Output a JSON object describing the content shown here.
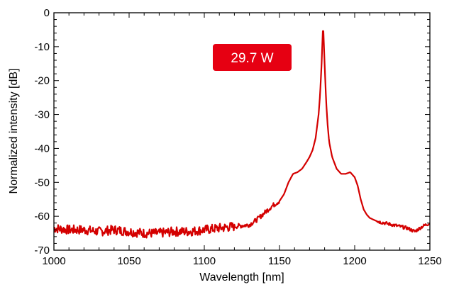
{
  "chart_data": {
    "type": "line",
    "xlabel": "Wavelength [nm]",
    "ylabel": "Normalized intensity [dB]",
    "xlim": [
      1000,
      1250
    ],
    "ylim": [
      -70,
      0
    ],
    "xticks": [
      "1000",
      "1050",
      "1100",
      "1150",
      "1200",
      "1250"
    ],
    "yticks": [
      "0",
      "-10",
      "-20",
      "-30",
      "-40",
      "-50",
      "-60",
      "-70"
    ],
    "grid": false,
    "annotation": {
      "text": "29.7 W",
      "background": "#e60012",
      "color": "#ffffff"
    },
    "series": [
      {
        "color": "#d40000",
        "x": [
          1000,
          1010,
          1020,
          1030,
          1040,
          1050,
          1060,
          1070,
          1080,
          1090,
          1100,
          1110,
          1120,
          1130,
          1135,
          1140,
          1145,
          1150,
          1153,
          1156,
          1159,
          1162,
          1165,
          1168,
          1170,
          1172,
          1174,
          1176,
          1177,
          1178,
          1179,
          1180,
          1181,
          1182,
          1183,
          1185,
          1188,
          1191,
          1194,
          1197,
          1200,
          1202,
          1204,
          1206,
          1208,
          1210,
          1215,
          1220,
          1225,
          1230,
          1235,
          1240,
          1245,
          1250
        ],
        "values": [
          -63.5,
          -64.0,
          -64.0,
          -64.5,
          -64.0,
          -64.5,
          -65.0,
          -65.0,
          -64.5,
          -64.5,
          -64.0,
          -63.5,
          -63.0,
          -62.5,
          -61.0,
          -59.0,
          -57.0,
          -55.5,
          -53.5,
          -50.0,
          -47.5,
          -47.0,
          -46.0,
          -44.0,
          -42.5,
          -40.5,
          -37.0,
          -30.0,
          -24.0,
          -15.0,
          -3.0,
          -15.0,
          -26.0,
          -33.0,
          -38.0,
          -42.5,
          -46.0,
          -47.5,
          -47.5,
          -47.0,
          -48.5,
          -51.0,
          -55.0,
          -58.0,
          -59.5,
          -60.5,
          -61.5,
          -62.0,
          -62.5,
          -63.0,
          -63.5,
          -64.5,
          -63.0,
          -62.0
        ]
      }
    ]
  }
}
